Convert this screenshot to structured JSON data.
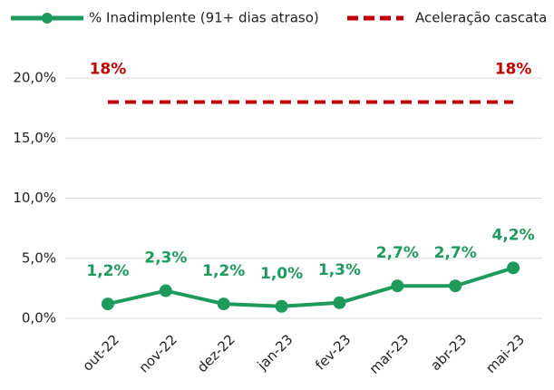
{
  "chart_data": {
    "type": "line",
    "categories": [
      "out-22",
      "nov-22",
      "dez-22",
      "jan-23",
      "fev-23",
      "mar-23",
      "abr-23",
      "mai-23"
    ],
    "series": [
      {
        "name": "% Inadimplente (91+ dias atraso)",
        "color": "#1e9a5c",
        "style": "solid",
        "markers": true,
        "values": [
          1.2,
          2.3,
          1.2,
          1.0,
          1.3,
          2.7,
          2.7,
          4.2
        ],
        "value_labels": [
          "1,2%",
          "2,3%",
          "1,2%",
          "1,0%",
          "1,3%",
          "2,7%",
          "2,7%",
          "4,2%"
        ]
      },
      {
        "name": "Aceleração cascata",
        "color": "#c00000",
        "style": "dashed",
        "markers": false,
        "values": [
          18,
          18,
          18,
          18,
          18,
          18,
          18,
          18
        ],
        "value_labels": [
          "18%",
          null,
          null,
          null,
          null,
          null,
          null,
          "18%"
        ]
      }
    ],
    "ylim": [
      0,
      20
    ],
    "yticks": [
      {
        "value": 0,
        "label": "0,0%"
      },
      {
        "value": 5,
        "label": "5,0%"
      },
      {
        "value": 10,
        "label": "10,0%"
      },
      {
        "value": 15,
        "label": "15,0%"
      },
      {
        "value": 20,
        "label": "20,0%"
      }
    ],
    "grid": true,
    "legend": "top"
  }
}
